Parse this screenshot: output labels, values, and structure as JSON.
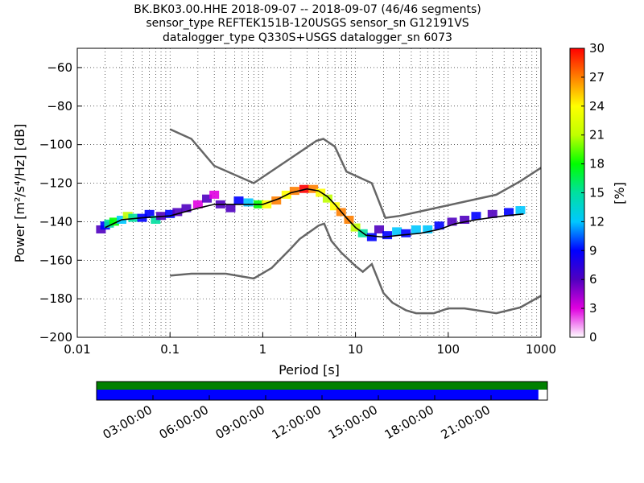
{
  "chart_data": {
    "type": "heatmap",
    "title_lines": [
      "BK.BK03.00.HHE   2018-09-07 -- 2018-09-07  (46/46 segments)",
      "sensor_type REFTEK151B-120USGS sensor_sn G12191VS",
      "datalogger_type Q330S+USGS datalogger_sn 6073"
    ],
    "xlabel": "Period [s]",
    "ylabel": "Power [m²/s⁴/Hz] [dB]",
    "x_scale": "log",
    "xlim": [
      0.01,
      1000
    ],
    "ylim": [
      -200,
      -50
    ],
    "x_ticks": [
      {
        "value": 0.01,
        "label": "0.01"
      },
      {
        "value": 0.1,
        "label": "0.1"
      },
      {
        "value": 1,
        "label": "1"
      },
      {
        "value": 10,
        "label": "10"
      },
      {
        "value": 100,
        "label": "100"
      },
      {
        "value": 1000,
        "label": "1000"
      }
    ],
    "y_ticks": [
      -60,
      -80,
      -100,
      -120,
      -140,
      -160,
      -180,
      -200
    ],
    "grid": true,
    "colorbar": {
      "label": "[%]",
      "range": [
        0,
        30
      ],
      "ticks": [
        0,
        3,
        6,
        9,
        12,
        15,
        18,
        21,
        24,
        27,
        30
      ],
      "colors": [
        "#ffffff",
        "#e000e0",
        "#5000c0",
        "#0000ff",
        "#00c8ff",
        "#00e0a0",
        "#00ff00",
        "#c0ff00",
        "#ffff00",
        "#ff8000",
        "#ff0000"
      ]
    },
    "noise_model_high": [
      {
        "x": 0.1,
        "y": -92
      },
      {
        "x": 0.17,
        "y": -97
      },
      {
        "x": 0.3,
        "y": -111
      },
      {
        "x": 0.8,
        "y": -120
      },
      {
        "x": 3.8,
        "y": -98
      },
      {
        "x": 4.5,
        "y": -97
      },
      {
        "x": 6.0,
        "y": -101
      },
      {
        "x": 8.0,
        "y": -114
      },
      {
        "x": 15,
        "y": -120
      },
      {
        "x": 21,
        "y": -138
      },
      {
        "x": 30,
        "y": -137
      },
      {
        "x": 330,
        "y": -126
      },
      {
        "x": 600,
        "y": -119
      },
      {
        "x": 1000,
        "y": -112
      }
    ],
    "noise_model_low": [
      {
        "x": 0.1,
        "y": -168
      },
      {
        "x": 0.17,
        "y": -167
      },
      {
        "x": 0.4,
        "y": -167
      },
      {
        "x": 0.8,
        "y": -169.5
      },
      {
        "x": 1.25,
        "y": -164
      },
      {
        "x": 2.0,
        "y": -154
      },
      {
        "x": 2.5,
        "y": -149
      },
      {
        "x": 4.0,
        "y": -142
      },
      {
        "x": 4.6,
        "y": -141
      },
      {
        "x": 5.5,
        "y": -150
      },
      {
        "x": 7.0,
        "y": -156
      },
      {
        "x": 10,
        "y": -163
      },
      {
        "x": 12,
        "y": -166
      },
      {
        "x": 15,
        "y": -162
      },
      {
        "x": 20,
        "y": -177
      },
      {
        "x": 25,
        "y": -182
      },
      {
        "x": 35,
        "y": -186
      },
      {
        "x": 45,
        "y": -187.5
      },
      {
        "x": 70,
        "y": -187.5
      },
      {
        "x": 100,
        "y": -185
      },
      {
        "x": 150,
        "y": -185
      },
      {
        "x": 330,
        "y": -187.5
      },
      {
        "x": 600,
        "y": -184.5
      },
      {
        "x": 1000,
        "y": -178.5
      }
    ],
    "median_curve": [
      {
        "x": 0.02,
        "y": -143
      },
      {
        "x": 0.03,
        "y": -139
      },
      {
        "x": 0.05,
        "y": -138
      },
      {
        "x": 0.1,
        "y": -137
      },
      {
        "x": 0.2,
        "y": -133
      },
      {
        "x": 0.3,
        "y": -131
      },
      {
        "x": 0.5,
        "y": -131
      },
      {
        "x": 0.8,
        "y": -131
      },
      {
        "x": 1.0,
        "y": -131
      },
      {
        "x": 1.5,
        "y": -128
      },
      {
        "x": 2.0,
        "y": -125
      },
      {
        "x": 3.0,
        "y": -123
      },
      {
        "x": 4.0,
        "y": -124
      },
      {
        "x": 5.0,
        "y": -127
      },
      {
        "x": 6.0,
        "y": -131
      },
      {
        "x": 8.0,
        "y": -138
      },
      {
        "x": 10,
        "y": -143
      },
      {
        "x": 13,
        "y": -147
      },
      {
        "x": 20,
        "y": -148
      },
      {
        "x": 30,
        "y": -147
      },
      {
        "x": 50,
        "y": -146
      },
      {
        "x": 80,
        "y": -144
      },
      {
        "x": 120,
        "y": -141
      },
      {
        "x": 200,
        "y": -139
      },
      {
        "x": 400,
        "y": -137
      },
      {
        "x": 650,
        "y": -136
      }
    ],
    "density": [
      {
        "x": 0.018,
        "y": -144,
        "pct": 5
      },
      {
        "x": 0.02,
        "y": -142,
        "pct": 8
      },
      {
        "x": 0.022,
        "y": -141,
        "pct": 14
      },
      {
        "x": 0.025,
        "y": -140,
        "pct": 18
      },
      {
        "x": 0.03,
        "y": -139,
        "pct": 12
      },
      {
        "x": 0.035,
        "y": -137,
        "pct": 22
      },
      {
        "x": 0.04,
        "y": -138,
        "pct": 15
      },
      {
        "x": 0.05,
        "y": -138,
        "pct": 10
      },
      {
        "x": 0.06,
        "y": -136,
        "pct": 8
      },
      {
        "x": 0.07,
        "y": -139,
        "pct": 14
      },
      {
        "x": 0.08,
        "y": -137,
        "pct": 6
      },
      {
        "x": 0.1,
        "y": -136,
        "pct": 10
      },
      {
        "x": 0.12,
        "y": -135,
        "pct": 5
      },
      {
        "x": 0.15,
        "y": -133,
        "pct": 7
      },
      {
        "x": 0.2,
        "y": -131,
        "pct": 4
      },
      {
        "x": 0.25,
        "y": -128,
        "pct": 5
      },
      {
        "x": 0.3,
        "y": -126,
        "pct": 3
      },
      {
        "x": 0.35,
        "y": -131,
        "pct": 6
      },
      {
        "x": 0.45,
        "y": -133,
        "pct": 5
      },
      {
        "x": 0.55,
        "y": -129,
        "pct": 8
      },
      {
        "x": 0.7,
        "y": -130,
        "pct": 12
      },
      {
        "x": 0.9,
        "y": -131,
        "pct": 18
      },
      {
        "x": 1.1,
        "y": -131,
        "pct": 24
      },
      {
        "x": 1.4,
        "y": -129,
        "pct": 26
      },
      {
        "x": 1.8,
        "y": -126,
        "pct": 24
      },
      {
        "x": 2.2,
        "y": -124,
        "pct": 28
      },
      {
        "x": 2.8,
        "y": -123,
        "pct": 29
      },
      {
        "x": 3.5,
        "y": -123,
        "pct": 27
      },
      {
        "x": 4.2,
        "y": -125,
        "pct": 24
      },
      {
        "x": 5.0,
        "y": -128,
        "pct": 22
      },
      {
        "x": 6.0,
        "y": -132,
        "pct": 25
      },
      {
        "x": 7.0,
        "y": -135,
        "pct": 28
      },
      {
        "x": 8.5,
        "y": -139,
        "pct": 26
      },
      {
        "x": 10,
        "y": -143,
        "pct": 22
      },
      {
        "x": 12,
        "y": -146,
        "pct": 14
      },
      {
        "x": 15,
        "y": -148,
        "pct": 8
      },
      {
        "x": 18,
        "y": -144,
        "pct": 6
      },
      {
        "x": 22,
        "y": -147,
        "pct": 9
      },
      {
        "x": 28,
        "y": -145,
        "pct": 12
      },
      {
        "x": 35,
        "y": -146,
        "pct": 10
      },
      {
        "x": 45,
        "y": -144,
        "pct": 13
      },
      {
        "x": 60,
        "y": -144,
        "pct": 11
      },
      {
        "x": 80,
        "y": -142,
        "pct": 9
      },
      {
        "x": 110,
        "y": -140,
        "pct": 7
      },
      {
        "x": 150,
        "y": -139,
        "pct": 6
      },
      {
        "x": 200,
        "y": -137,
        "pct": 8
      },
      {
        "x": 300,
        "y": -136,
        "pct": 7
      },
      {
        "x": 450,
        "y": -135,
        "pct": 10
      },
      {
        "x": 600,
        "y": -134,
        "pct": 13
      }
    ],
    "coverage": {
      "time_ticks": [
        "03:00:00",
        "06:00:00",
        "09:00:00",
        "12:00:00",
        "15:00:00",
        "18:00:00",
        "21:00:00"
      ],
      "data_fraction": 0.98,
      "colors": {
        "available": "#008000",
        "used": "#0000ff"
      }
    }
  }
}
